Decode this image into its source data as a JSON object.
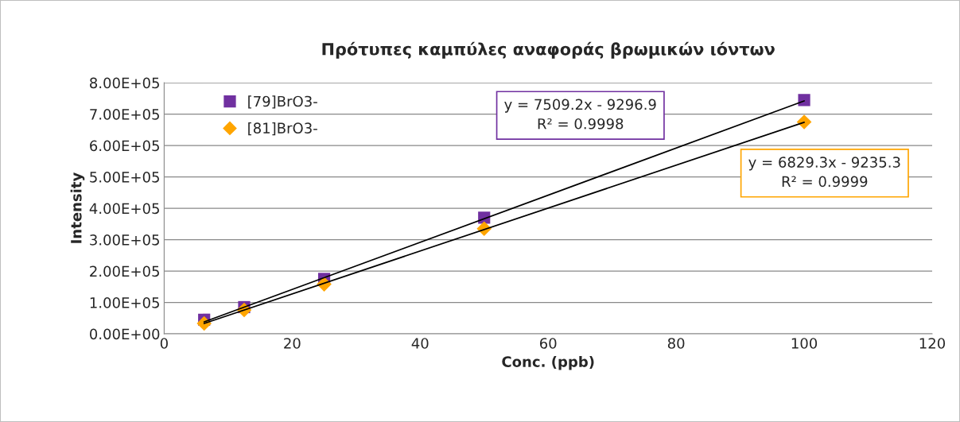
{
  "chart_data": {
    "type": "scatter",
    "title": "Πρότυπες καμπύλες αναφοράς βρωμικών ιόντων",
    "xlabel": "Conc. (ppb)",
    "ylabel": "Intensity",
    "series": [
      {
        "name": "[79]BrO3-",
        "color": "#7030a0",
        "marker": "square",
        "x": [
          6.25,
          12.5,
          25,
          50,
          100
        ],
        "values": [
          45000,
          85000,
          175000,
          370000,
          745000
        ]
      },
      {
        "name": "[81]BrO3-",
        "color": "#ffa500",
        "marker": "diamond",
        "x": [
          6.25,
          12.5,
          25,
          50,
          100
        ],
        "values": [
          33000,
          76000,
          158000,
          335000,
          675000
        ]
      },
      {
        "type": "line",
        "color": "#000000",
        "marker": "none",
        "x": [
          6.25,
          100
        ],
        "values": [
          38000,
          742000
        ]
      },
      {
        "type": "line",
        "color": "#000000",
        "marker": "none",
        "x": [
          6.25,
          100
        ],
        "values": [
          33000,
          674000
        ]
      }
    ],
    "annotations": [
      "y = 7509.2x - 9296.9\nR² = 0.9998",
      "y = 6829.3x - 9235.3\nR² = 0.9999"
    ],
    "xlim": [
      0,
      120
    ],
    "xticks": [
      0,
      20,
      40,
      60,
      80,
      100,
      120
    ],
    "ylim": [
      0,
      800000
    ],
    "yticks": [
      {
        "value": 0,
        "label": "0.00E+00"
      },
      {
        "value": 100000,
        "label": "1.00E+05"
      },
      {
        "value": 200000,
        "label": "2.00E+05"
      },
      {
        "value": 300000,
        "label": "3.00E+05"
      },
      {
        "value": 400000,
        "label": "4.00E+05"
      },
      {
        "value": 500000,
        "label": "5.00E+05"
      },
      {
        "value": 600000,
        "label": "6.00E+05"
      },
      {
        "value": 700000,
        "label": "7.00E+05"
      },
      {
        "value": 800000,
        "label": "8.00E+05"
      }
    ],
    "grid": "y",
    "legend": "top left"
  }
}
